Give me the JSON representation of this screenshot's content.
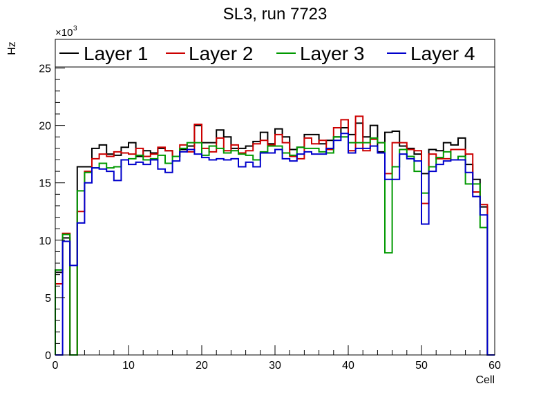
{
  "chart_data": {
    "type": "step-histogram",
    "title": "SL3, run 7723",
    "xlabel": "Cell",
    "ylabel": "Hz",
    "exponent_label": "×10",
    "exponent_power": "3",
    "xlim": [
      0,
      60
    ],
    "ylim": [
      0,
      27.5
    ],
    "grid": false,
    "legend_position": "top",
    "x_ticks": [
      0,
      10,
      20,
      30,
      40,
      50,
      60
    ],
    "y_ticks": [
      0,
      5,
      10,
      15,
      20,
      25
    ],
    "series": [
      {
        "name": "Layer 1",
        "color": "#000000",
        "values": [
          7.2,
          10.2,
          0.0,
          16.4,
          16.4,
          18.0,
          18.3,
          17.5,
          17.4,
          18.1,
          18.5,
          17.3,
          17.8,
          17.6,
          18.0,
          17.8,
          17.3,
          17.9,
          18.2,
          20.0,
          18.5,
          18.5,
          19.6,
          19.0,
          18.0,
          18.0,
          18.2,
          18.6,
          19.4,
          18.4,
          19.7,
          19.0,
          17.9,
          18.1,
          19.2,
          19.2,
          18.4,
          18.7,
          19.0,
          19.8,
          19.2,
          20.2,
          19.0,
          20.0,
          17.7,
          19.4,
          19.5,
          18.2,
          18.0,
          17.5,
          15.8,
          17.9,
          17.8,
          18.5,
          18.3,
          18.9,
          16.6,
          15.3,
          12.9,
          0.0
        ]
      },
      {
        "name": "Layer 2",
        "color": "#cc0000",
        "values": [
          6.2,
          10.6,
          0.0,
          12.5,
          16.0,
          17.1,
          17.5,
          17.3,
          17.7,
          17.6,
          17.5,
          18.0,
          17.3,
          17.5,
          18.1,
          17.8,
          17.3,
          18.3,
          17.7,
          20.1,
          18.0,
          17.7,
          18.9,
          17.8,
          18.3,
          17.6,
          17.8,
          18.4,
          18.7,
          18.3,
          19.2,
          18.5,
          17.3,
          17.1,
          18.9,
          18.4,
          18.7,
          17.9,
          19.8,
          20.5,
          17.8,
          20.8,
          17.8,
          18.8,
          18.5,
          15.8,
          18.5,
          18.5,
          17.9,
          17.8,
          13.2,
          17.5,
          17.1,
          17.1,
          17.9,
          17.9,
          17.5,
          14.2,
          13.1,
          0.0
        ]
      },
      {
        "name": "Layer 3",
        "color": "#009900",
        "values": [
          7.4,
          10.5,
          0.0,
          14.3,
          15.9,
          16.3,
          16.7,
          16.3,
          16.4,
          17.0,
          17.1,
          17.4,
          17.0,
          17.1,
          17.4,
          16.7,
          17.3,
          18.0,
          18.5,
          18.5,
          17.4,
          18.2,
          18.0,
          17.6,
          17.8,
          17.5,
          17.4,
          17.0,
          17.7,
          18.2,
          18.2,
          17.6,
          17.4,
          18.1,
          18.0,
          18.0,
          17.7,
          17.6,
          19.0,
          19.0,
          18.5,
          18.5,
          18.5,
          18.9,
          18.5,
          8.9,
          16.4,
          17.9,
          17.3,
          16.0,
          14.1,
          16.4,
          17.2,
          17.7,
          17.0,
          17.3,
          14.9,
          14.9,
          11.1,
          0.0
        ]
      },
      {
        "name": "Layer 4",
        "color": "#0000cc",
        "values": [
          0.0,
          9.9,
          7.8,
          11.5,
          15.0,
          16.3,
          16.2,
          16.0,
          15.2,
          17.0,
          16.6,
          16.8,
          16.6,
          17.0,
          16.2,
          15.9,
          16.9,
          17.7,
          17.9,
          17.5,
          17.2,
          17.0,
          17.1,
          17.0,
          17.1,
          16.4,
          16.8,
          16.4,
          17.6,
          17.6,
          17.9,
          17.1,
          16.9,
          17.5,
          17.7,
          17.5,
          17.5,
          18.0,
          18.7,
          19.3,
          17.6,
          18.0,
          18.0,
          18.2,
          17.6,
          15.3,
          15.3,
          17.5,
          17.1,
          16.9,
          11.4,
          16.0,
          16.6,
          16.9,
          17.0,
          17.0,
          15.9,
          13.8,
          12.2,
          0.0
        ]
      }
    ]
  }
}
